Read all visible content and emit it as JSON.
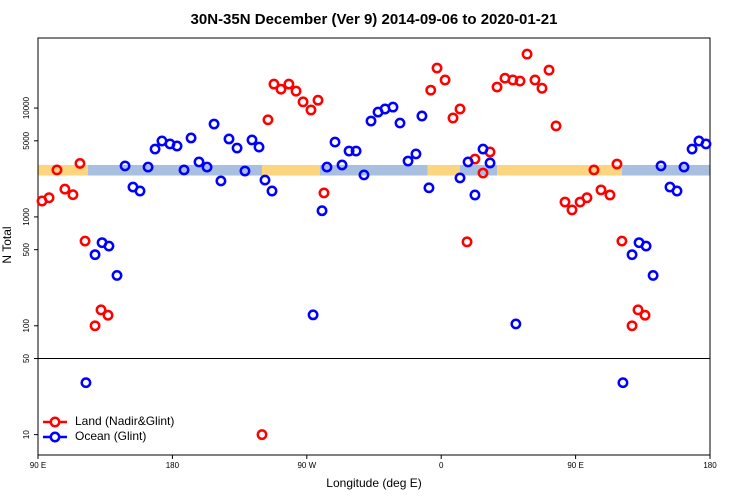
{
  "chart_data": {
    "type": "scatter",
    "title": "30N-35N December (Ver 9)   2014-09-06 to 2020-01-21",
    "x_label": "Longitude (deg E)",
    "y_label": "N Total",
    "xlim": [
      90,
      540
    ],
    "xticks": [
      {
        "value": 90,
        "label": "90 E"
      },
      180,
      {
        "value": 270,
        "label": "90 W"
      },
      {
        "value": 360,
        "label": "0"
      },
      {
        "value": 450,
        "label": "90 E"
      },
      {
        "value": 540,
        "label": "180"
      }
    ],
    "ylim": [
      6.5,
      44000
    ],
    "log_y": true,
    "yticks": [
      10,
      50,
      100,
      500,
      1000,
      5000,
      10000
    ],
    "hline": 50,
    "legend": "lower left",
    "band": {
      "ylim": [
        2400,
        3000
      ],
      "segments": [
        {
          "xlim": [
            90,
            123.5
          ],
          "color": "#fdd57e"
        },
        {
          "xlim": [
            123.5,
            240
          ],
          "color": "#a9bfe0"
        },
        {
          "xlim": [
            240,
            278.8
          ],
          "color": "#fdd57e"
        },
        {
          "xlim": [
            278.8,
            351
          ],
          "color": "#a9bfe0"
        },
        {
          "xlim": [
            351,
            372.6
          ],
          "color": "#fdd57e"
        },
        {
          "xlim": [
            372.6,
            397.4
          ],
          "color": "#a9bfe0"
        },
        {
          "xlim": [
            397.4,
            481
          ],
          "color": "#fdd57e"
        },
        {
          "xlim": [
            481,
            540
          ],
          "color": "#a9bfe0"
        }
      ]
    },
    "series": [
      {
        "name": "Land (Nadir&Glint)",
        "color": "#ff0000",
        "x": [
          92.7,
          97.4,
          102.7,
          108,
          113.4,
          118.1,
          121.5,
          128.2,
          132.2,
          136.9,
          240,
          244,
          248,
          252.7,
          258,
          262.8,
          267.5,
          272.8,
          277.5,
          281.5,
          353,
          357.2,
          362.6,
          367.9,
          372.6,
          377.3,
          382.6,
          388,
          392.7,
          397.4,
          402.7,
          408,
          412.8,
          417.5,
          422.8,
          427.5,
          432.2,
          436.9,
          442.9,
          447.6,
          453,
          457.6,
          462.3,
          467,
          473,
          477.7,
          481,
          487.8,
          491.8,
          496.5
        ],
        "values": [
          1400,
          1500,
          2700,
          1800,
          1600,
          3100,
          600,
          100,
          140,
          125,
          10,
          7800,
          16600,
          14900,
          16600,
          14300,
          11400,
          9600,
          11800,
          1660,
          14600,
          23300,
          18100,
          8100,
          9800,
          590,
          3400,
          2530,
          3950,
          15600,
          18800,
          18100,
          17700,
          31300,
          18100,
          15200,
          22300,
          6850,
          1370,
          1160,
          1370,
          1500,
          2700,
          1770,
          1590,
          3060,
          600,
          100,
          140,
          125
        ]
      },
      {
        "name": "Ocean (Glint)",
        "color": "#0000ff",
        "x": [
          122.1,
          128.2,
          132.9,
          137.5,
          142.9,
          148.3,
          153.6,
          158.3,
          163.7,
          168.4,
          173,
          178.4,
          183.1,
          187.8,
          192.5,
          197.8,
          203.2,
          207.9,
          212.5,
          217.9,
          223.3,
          228.6,
          233.3,
          238,
          242,
          246.7,
          274.2,
          280.2,
          283.5,
          288.9,
          293.6,
          298.3,
          303,
          308.3,
          313,
          317.7,
          322.4,
          327.7,
          332.4,
          337.8,
          343.1,
          347.1,
          351.8,
          372.6,
          378,
          382.6,
          388,
          392.7,
          410,
          481.7,
          487.8,
          492.5,
          497.2,
          501.9,
          507.2,
          513.2,
          517.9,
          522.6,
          528,
          532.6,
          537.3
        ],
        "values": [
          30,
          450,
          580,
          540,
          290,
          2940,
          1880,
          1730,
          2870,
          4200,
          4980,
          4680,
          4480,
          2700,
          5310,
          3200,
          2870,
          7130,
          2140,
          5200,
          4290,
          2640,
          5090,
          4380,
          2180,
          1730,
          126,
          1140,
          2870,
          4870,
          3000,
          4030,
          4030,
          2430,
          7600,
          9180,
          9800,
          10200,
          7280,
          3260,
          3790,
          8450,
          1850,
          2280,
          3200,
          1590,
          4200,
          3130,
          104,
          30,
          450,
          580,
          540,
          290,
          2940,
          1880,
          1730,
          2870,
          4200,
          4980,
          4680
        ]
      }
    ]
  }
}
